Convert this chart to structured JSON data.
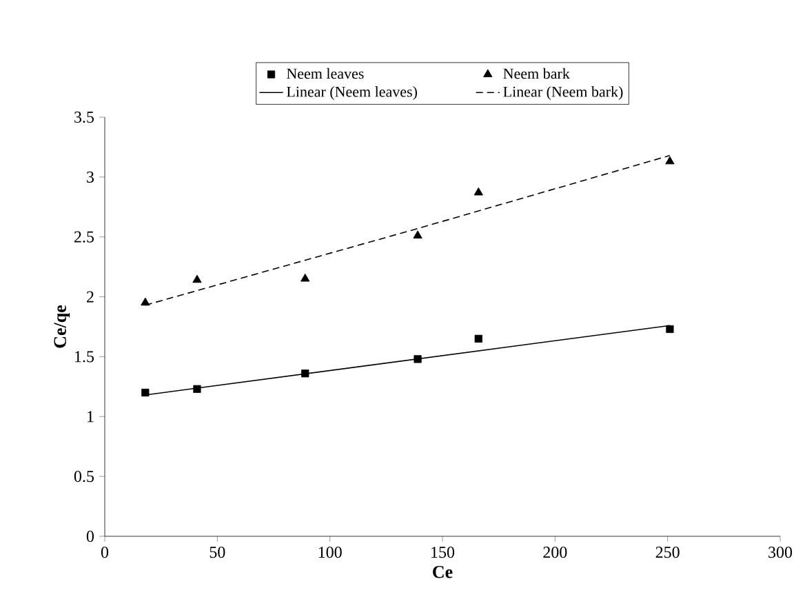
{
  "chart_data": {
    "type": "scatter",
    "xlabel": "Ce",
    "ylabel": "Ce/qe",
    "xlim": [
      0,
      300
    ],
    "ylim": [
      0,
      3.5
    ],
    "xticks": [
      0,
      50,
      100,
      150,
      200,
      250,
      300
    ],
    "yticks": [
      0,
      0.5,
      1,
      1.5,
      2,
      2.5,
      3,
      3.5
    ],
    "legend": "top",
    "grid": false,
    "series": [
      {
        "name": "Neem leaves",
        "marker": "square",
        "color": "#000000",
        "x": [
          18,
          41,
          89,
          139,
          166,
          251
        ],
        "values": [
          1.2,
          1.23,
          1.36,
          1.48,
          1.65,
          1.73
        ]
      },
      {
        "name": "Neem bark",
        "marker": "triangle",
        "color": "#000000",
        "x": [
          18,
          41,
          89,
          139,
          166,
          251
        ],
        "values": [
          1.95,
          2.14,
          2.15,
          2.51,
          2.87,
          3.13
        ]
      },
      {
        "name": "Linear (Neem leaves)",
        "type": "line",
        "marker": "none",
        "line_style": "solid",
        "color": "#000000",
        "x": [
          18,
          251
        ],
        "values": [
          1.18,
          1.76
        ]
      },
      {
        "name": "Linear (Neem bark)",
        "type": "line",
        "marker": "none",
        "line_style": "dashed",
        "color": "#000000",
        "x": [
          18,
          139,
          251
        ],
        "values": [
          1.93,
          2.57,
          3.18
        ]
      }
    ]
  }
}
